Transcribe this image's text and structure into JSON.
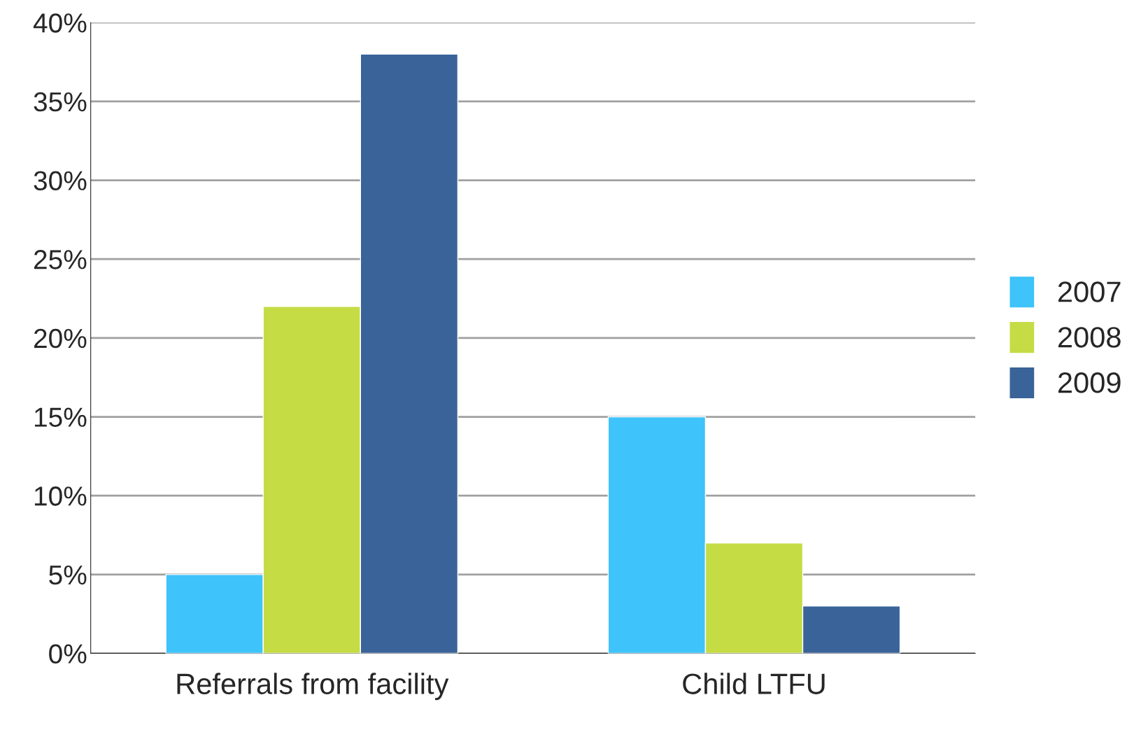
{
  "chart_data": {
    "type": "bar",
    "categories": [
      "Referrals from facility",
      "Child LTFU"
    ],
    "series": [
      {
        "name": "2007",
        "color": "#3ec3fa",
        "values": [
          5,
          15
        ]
      },
      {
        "name": "2008",
        "color": "#c5dc45",
        "values": [
          22,
          7
        ]
      },
      {
        "name": "2009",
        "color": "#3a6399",
        "values": [
          38,
          3
        ]
      }
    ],
    "ylim": [
      0,
      40
    ],
    "yticks": [
      {
        "value": 0,
        "label": "0%"
      },
      {
        "value": 5,
        "label": "5%"
      },
      {
        "value": 10,
        "label": "10%"
      },
      {
        "value": 15,
        "label": "15%"
      },
      {
        "value": 20,
        "label": "20%"
      },
      {
        "value": 25,
        "label": "25%"
      },
      {
        "value": 30,
        "label": "30%"
      },
      {
        "value": 35,
        "label": "35%"
      },
      {
        "value": 40,
        "label": "40%"
      }
    ],
    "grid": "y",
    "legend": "right"
  }
}
